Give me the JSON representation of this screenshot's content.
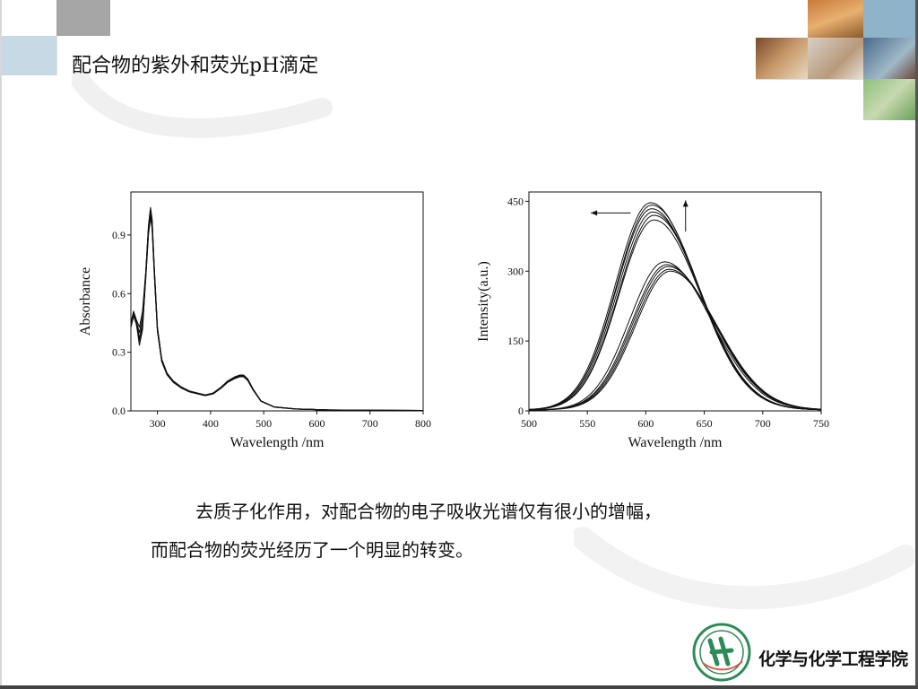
{
  "slide": {
    "title": "配合物的紫外和荧光pH滴定",
    "caption_line1": "去质子化作用，对配合物的电子吸收光谱仅有很小的增幅，",
    "caption_line2": "而配合物的荧光经历了一个明显的转变。",
    "logo_text": "化学与化学工程学院"
  },
  "colors": {
    "deco_gray": "#a6a6a6",
    "deco_lightgray": "#d9d9d9",
    "deco_blue": "#8fb3c9",
    "deco_lightblue": "#c6d9e4",
    "deco_green": "#8cc07a",
    "logo_green": "#2e8b57",
    "curve": "#111111"
  },
  "chart_data": [
    {
      "type": "line",
      "xlabel": "Wavelength /nm",
      "ylabel": "Absorbance",
      "xlim": [
        250,
        800
      ],
      "ylim": [
        0,
        1.12
      ],
      "xticks": [
        300,
        400,
        500,
        600,
        700,
        800
      ],
      "yticks": [
        0.0,
        0.3,
        0.6,
        0.9
      ],
      "xtick_labels": [
        "300",
        "400",
        "500",
        "600",
        "700",
        "800"
      ],
      "ytick_labels": [
        "0.0",
        "0.3",
        "0.6",
        "0.9"
      ],
      "series_template": {
        "x": [
          250,
          255,
          260,
          266,
          272,
          278,
          283,
          287,
          290,
          294,
          300,
          308,
          318,
          330,
          345,
          360,
          375,
          390,
          405,
          420,
          432,
          445,
          455,
          462,
          470,
          480,
          495,
          520,
          560,
          620,
          700,
          800
        ],
        "y": [
          0.44,
          0.5,
          0.46,
          0.4,
          0.48,
          0.7,
          0.93,
          1.02,
          0.96,
          0.72,
          0.42,
          0.26,
          0.19,
          0.15,
          0.12,
          0.1,
          0.09,
          0.08,
          0.09,
          0.12,
          0.15,
          0.17,
          0.18,
          0.18,
          0.16,
          0.11,
          0.05,
          0.02,
          0.01,
          0.005,
          0.003,
          0.002
        ]
      },
      "series": [
        {
          "scale": 1.0,
          "dip": 0.0
        },
        {
          "scale": 0.98,
          "dip": 0.02
        },
        {
          "scale": 1.01,
          "dip": 0.04
        },
        {
          "scale": 0.99,
          "dip": 0.06
        },
        {
          "scale": 1.02,
          "dip": -0.02
        },
        {
          "scale": 0.97,
          "dip": 0.03
        }
      ]
    },
    {
      "type": "line",
      "xlabel": "Wavelength /nm",
      "ylabel": "Intensity(a.u.)",
      "xlim": [
        500,
        750
      ],
      "ylim": [
        0,
        470
      ],
      "xticks": [
        500,
        550,
        600,
        650,
        700,
        750
      ],
      "yticks": [
        0,
        150,
        300,
        450
      ],
      "xtick_labels": [
        "500",
        "550",
        "600",
        "650",
        "700",
        "750"
      ],
      "ytick_labels": [
        "0",
        "150",
        "300",
        "450"
      ],
      "annotations": [
        "arrow-left",
        "arrow-up"
      ],
      "series": [
        {
          "peak_x": 604,
          "peak_y": 445
        },
        {
          "peak_x": 605,
          "peak_y": 440
        },
        {
          "peak_x": 605,
          "peak_y": 432
        },
        {
          "peak_x": 606,
          "peak_y": 425
        },
        {
          "peak_x": 607,
          "peak_y": 418
        },
        {
          "peak_x": 607,
          "peak_y": 408
        },
        {
          "peak_x": 616,
          "peak_y": 318
        },
        {
          "peak_x": 618,
          "peak_y": 312
        },
        {
          "peak_x": 619,
          "peak_y": 308
        },
        {
          "peak_x": 620,
          "peak_y": 302
        },
        {
          "peak_x": 621,
          "peak_y": 298
        }
      ]
    }
  ]
}
